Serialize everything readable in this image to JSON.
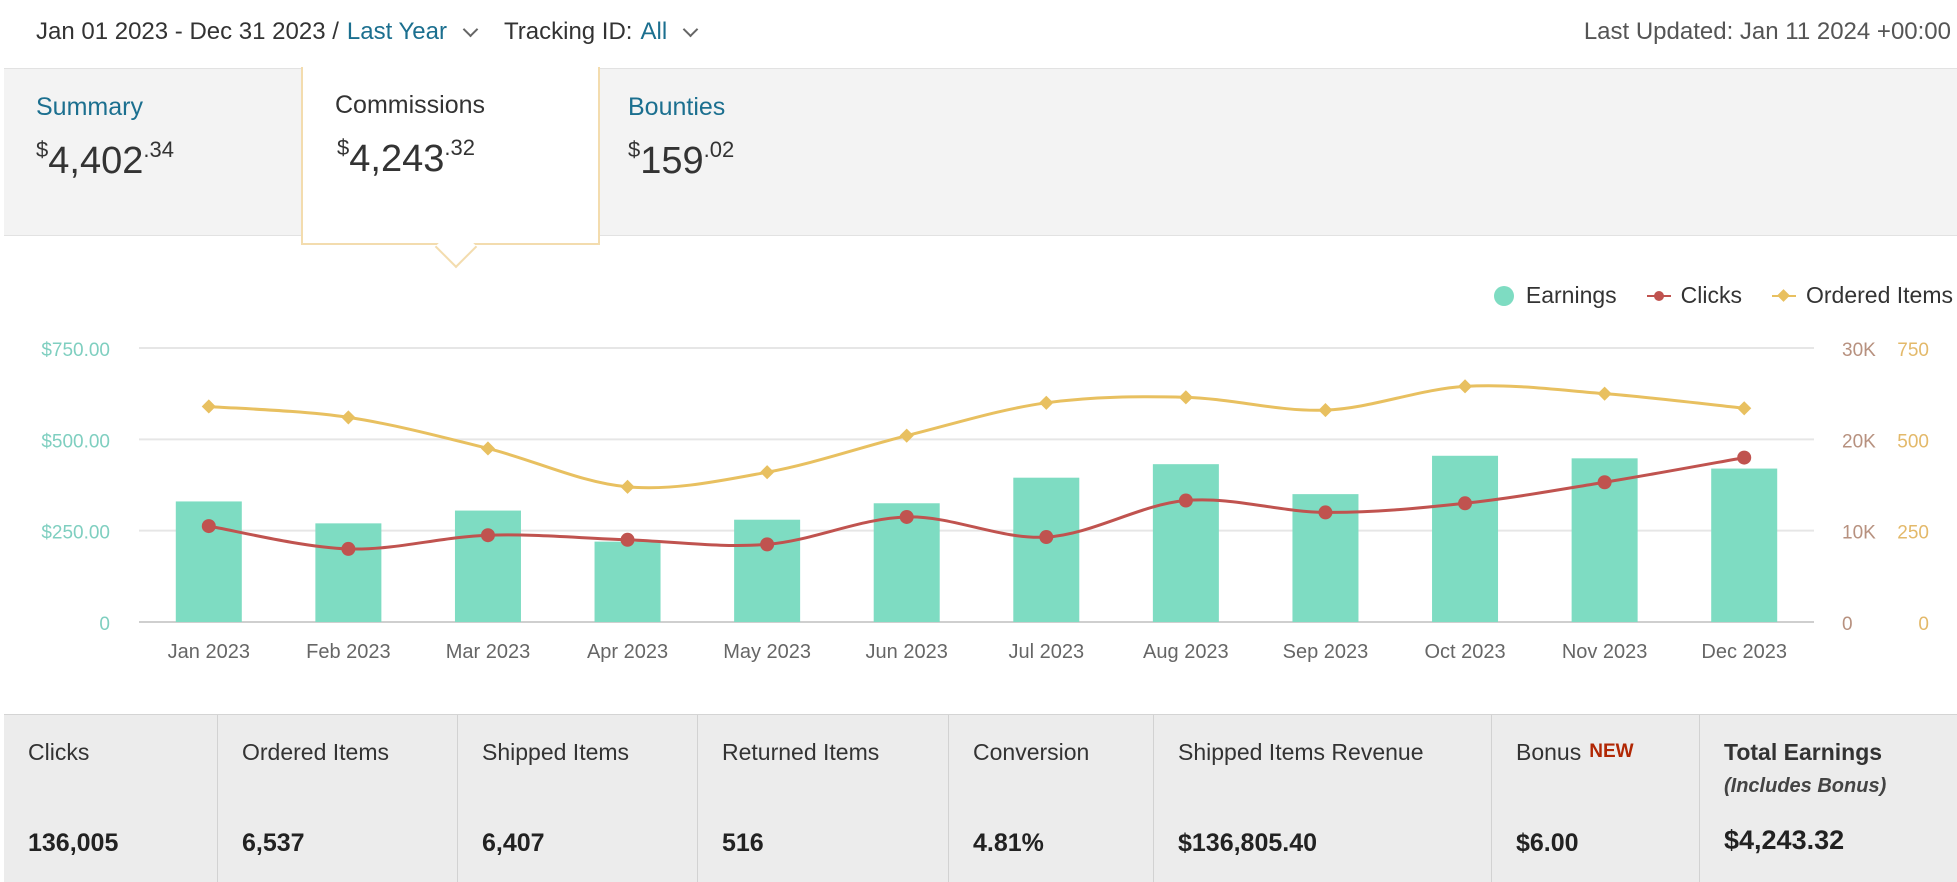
{
  "filters": {
    "date_range": "Jan 01 2023 - Dec 31 2023 /",
    "date_preset": "Last Year",
    "tracking_label": "Tracking ID:",
    "tracking_value": "All"
  },
  "last_updated": "Last Updated: Jan 11 2024 +00:00",
  "tabs": [
    {
      "label": "Summary",
      "dollar": "$",
      "whole": "4,402",
      "cents": ".34"
    },
    {
      "label": "Commissions",
      "dollar": "$",
      "whole": "4,243",
      "cents": ".32"
    },
    {
      "label": "Bounties",
      "dollar": "$",
      "whole": "159",
      "cents": ".02"
    }
  ],
  "legend": {
    "earnings": "Earnings",
    "clicks": "Clicks",
    "ordered_items": "Ordered Items"
  },
  "colors": {
    "earnings": "#7edcc2",
    "clicks": "#c0534f",
    "ordered_items": "#e8c060",
    "axis_left": "#7fcfc0",
    "axis_clicks": "#b7917f",
    "axis_items": "#e3b96a",
    "link": "#1b6f8f"
  },
  "chart_data": {
    "type": "bar",
    "categories": [
      "Jan 2023",
      "Feb 2023",
      "Mar 2023",
      "Apr 2023",
      "May 2023",
      "Jun 2023",
      "Jul 2023",
      "Aug 2023",
      "Sep 2023",
      "Oct 2023",
      "Nov 2023",
      "Dec 2023"
    ],
    "y_left": {
      "ticks": [
        "0",
        "$250.00",
        "$500.00",
        "$750.00"
      ],
      "range": [
        0,
        750
      ]
    },
    "y_right_clicks": {
      "ticks": [
        "0",
        "10K",
        "20K",
        "30K"
      ],
      "range": [
        0,
        30000
      ]
    },
    "y_right_items": {
      "ticks": [
        "0",
        "250",
        "500",
        "750"
      ],
      "range": [
        0,
        750
      ]
    },
    "grid": true,
    "legend_position": "top-right",
    "series": [
      {
        "name": "Earnings",
        "type": "bar",
        "axis": "left",
        "values": [
          330,
          270,
          305,
          220,
          280,
          325,
          395,
          432,
          350,
          455,
          448,
          420
        ]
      },
      {
        "name": "Clicks",
        "type": "line",
        "axis": "right_clicks",
        "values": [
          10500,
          8000,
          9500,
          9000,
          8500,
          11500,
          9300,
          13300,
          12000,
          13000,
          15300,
          18000
        ]
      },
      {
        "name": "Ordered Items",
        "type": "line",
        "axis": "right_items",
        "values": [
          590,
          560,
          475,
          370,
          410,
          510,
          600,
          615,
          580,
          645,
          625,
          585
        ]
      }
    ]
  },
  "stats": [
    {
      "label": "Clicks",
      "value": "136,005"
    },
    {
      "label": "Ordered Items",
      "value": "6,537"
    },
    {
      "label": "Shipped Items",
      "value": "6,407"
    },
    {
      "label": "Returned Items",
      "value": "516"
    },
    {
      "label": "Conversion",
      "value": "4.81%"
    },
    {
      "label": "Shipped Items Revenue",
      "value": "$136,805.40"
    },
    {
      "label": "Bonus",
      "badge": "NEW",
      "value": "$6.00"
    },
    {
      "label": "Total Earnings",
      "sub": "(Includes Bonus)",
      "value": "$4,243.32"
    }
  ]
}
